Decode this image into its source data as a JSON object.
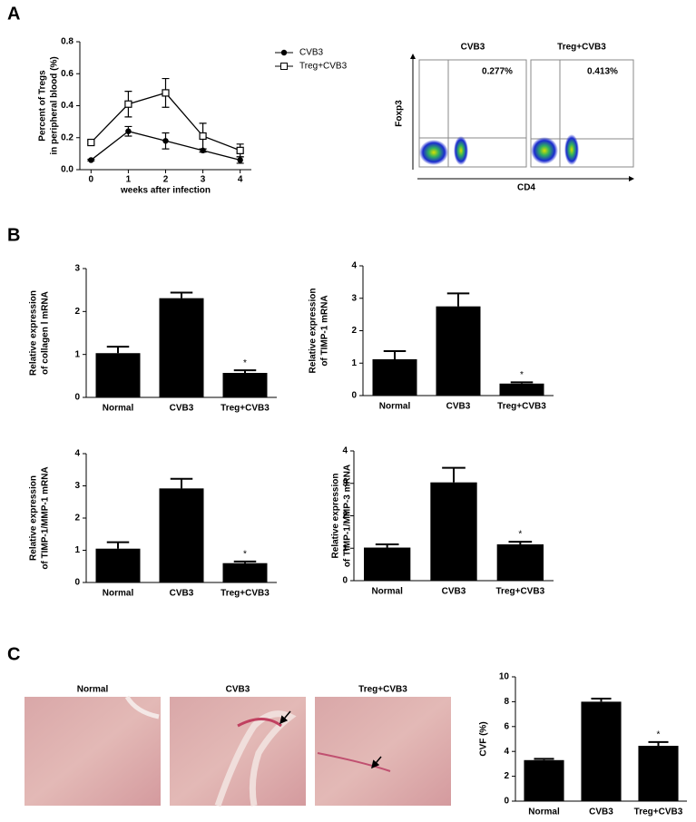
{
  "panels": [
    "A",
    "B",
    "C"
  ],
  "flow_cytometry": {
    "xlabel": "CD4",
    "ylabel": "Foxp3",
    "plots": [
      {
        "title": "CVB3",
        "percent": "0.277%"
      },
      {
        "title": "Treg+CVB3",
        "percent": "0.413%"
      }
    ]
  },
  "micrographs": [
    "Normal",
    "CVB3",
    "Treg+CVB3"
  ],
  "chart_data": [
    {
      "type": "line",
      "ylabel": [
        "Percent of Tregs",
        "in peripheral blood (%)"
      ],
      "xlabel": "weeks after infection",
      "x": [
        0,
        1,
        2,
        3,
        4
      ],
      "xlim": [
        -0.3,
        4.3
      ],
      "xticks": [
        0,
        1,
        2,
        3,
        4
      ],
      "ylim": [
        0,
        0.8
      ],
      "yticks": [
        {
          "value": 0,
          "label": "0.0"
        },
        0.2,
        0.4,
        0.6,
        0.8
      ],
      "series": [
        {
          "name": "CVB3",
          "color": "#000000",
          "marker": "circle",
          "values": [
            0.06,
            0.24,
            0.18,
            0.12,
            0.06
          ],
          "errors": [
            0.005,
            0.03,
            0.05,
            0.01,
            0.02
          ]
        },
        {
          "name": "Treg+CVB3",
          "color": "#000000",
          "marker": "square",
          "values": [
            0.17,
            0.41,
            0.48,
            0.21,
            0.12
          ],
          "errors": [
            0.01,
            0.08,
            0.09,
            0.08,
            0.04
          ]
        }
      ]
    },
    {
      "type": "bar",
      "ylabel": [
        "Relative expression",
        "of collagen Ⅰ mRNA"
      ],
      "categories": [
        "Normal",
        "CVB3",
        "Treg+CVB3"
      ],
      "values": [
        1.03,
        2.31,
        0.57
      ],
      "errors": [
        0.15,
        0.13,
        0.06
      ],
      "significance": [
        null,
        null,
        "*"
      ],
      "color": "#000000",
      "ylim": [
        0,
        3
      ],
      "yticks": [
        0,
        1,
        2,
        3
      ]
    },
    {
      "type": "bar",
      "ylabel": [
        "Relative expression",
        "of TIMP-1 mRNA"
      ],
      "categories": [
        "Normal",
        "CVB3",
        "Treg+CVB3"
      ],
      "values": [
        1.12,
        2.75,
        0.37
      ],
      "errors": [
        0.25,
        0.4,
        0.04
      ],
      "significance": [
        null,
        null,
        "*"
      ],
      "color": "#000000",
      "ylim": [
        0,
        4
      ],
      "yticks": [
        0,
        1,
        2,
        3,
        4
      ]
    },
    {
      "type": "bar",
      "ylabel": [
        "Relative expression",
        "of TIMP-1/MMP-1 mRNA"
      ],
      "categories": [
        "Normal",
        "CVB3",
        "Treg+CVB3"
      ],
      "values": [
        1.05,
        2.92,
        0.6
      ],
      "errors": [
        0.2,
        0.3,
        0.05
      ],
      "significance": [
        null,
        null,
        "*"
      ],
      "color": "#000000",
      "ylim": [
        0,
        4
      ],
      "yticks": [
        0,
        1,
        2,
        3,
        4
      ]
    },
    {
      "type": "bar",
      "ylabel": [
        "Relative expression",
        "of TIMP-1/MMP-3 mRNA"
      ],
      "categories": [
        "Normal",
        "CVB3",
        "Treg+CVB3"
      ],
      "values": [
        1.02,
        3.03,
        1.12
      ],
      "errors": [
        0.1,
        0.45,
        0.08
      ],
      "significance": [
        null,
        null,
        "*"
      ],
      "color": "#000000",
      "ylim": [
        0,
        4
      ],
      "yticks": [
        0,
        1,
        2,
        3,
        4
      ]
    },
    {
      "type": "bar",
      "ylabel": [
        "CVF (%)"
      ],
      "categories": [
        "Normal",
        "CVB3",
        "Treg+CVB3"
      ],
      "values": [
        3.3,
        8.0,
        4.45
      ],
      "errors": [
        0.1,
        0.25,
        0.3
      ],
      "significance": [
        null,
        null,
        "*"
      ],
      "color": "#000000",
      "ylim": [
        0,
        10
      ],
      "yticks": [
        0,
        2,
        4,
        6,
        8,
        10
      ]
    }
  ]
}
